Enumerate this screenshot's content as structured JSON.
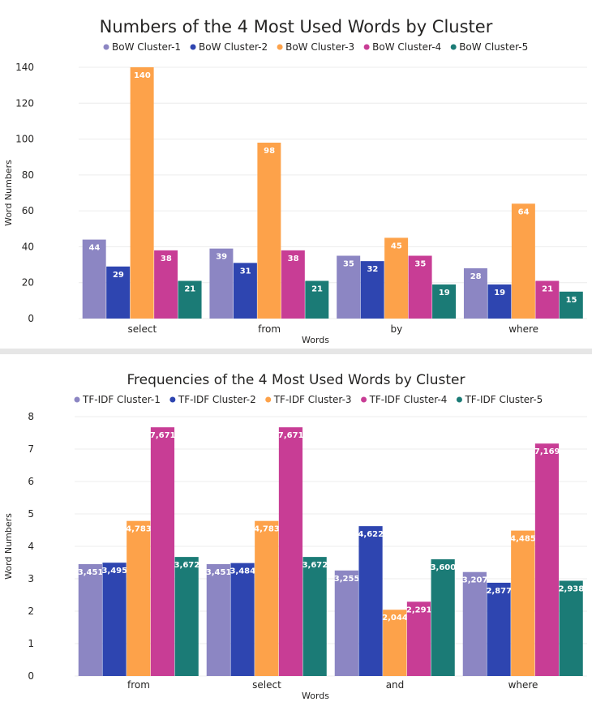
{
  "chart_data": [
    {
      "type": "bar",
      "title": "Numbers of the 4 Most Used Words by Cluster",
      "xlabel": "Words",
      "ylabel": "Word Numbers",
      "categories": [
        "select",
        "from",
        "by",
        "where"
      ],
      "ylim": [
        0,
        140
      ],
      "yticks": [
        0,
        20,
        40,
        60,
        80,
        100,
        120,
        140
      ],
      "grid": true,
      "legend_position": "top",
      "series": [
        {
          "name": "BoW Cluster-1",
          "color": "#8c86c3",
          "values": [
            44,
            39,
            35,
            28
          ],
          "labels": [
            "44",
            "39",
            "35",
            "28"
          ]
        },
        {
          "name": "BoW Cluster-2",
          "color": "#2e45b0",
          "values": [
            29,
            31,
            32,
            19
          ],
          "labels": [
            "29",
            "31",
            "32",
            "19"
          ]
        },
        {
          "name": "BoW Cluster-3",
          "color": "#fda24a",
          "values": [
            140,
            98,
            45,
            64
          ],
          "labels": [
            "140",
            "98",
            "45",
            "64"
          ]
        },
        {
          "name": "BoW Cluster-4",
          "color": "#c83d95",
          "values": [
            38,
            38,
            35,
            21
          ],
          "labels": [
            "38",
            "38",
            "35",
            "21"
          ]
        },
        {
          "name": "BoW Cluster-5",
          "color": "#1b7b76",
          "values": [
            21,
            21,
            19,
            15
          ],
          "labels": [
            "21",
            "21",
            "19",
            "15"
          ]
        }
      ]
    },
    {
      "type": "bar",
      "title": "Frequencies of the 4 Most Used Words by Cluster",
      "xlabel": "Words",
      "ylabel": "Word Numbers",
      "categories": [
        "from",
        "select",
        "and",
        "where"
      ],
      "ylim": [
        0,
        8
      ],
      "yticks": [
        0,
        1,
        2,
        3,
        4,
        5,
        6,
        7,
        8
      ],
      "grid": true,
      "legend_position": "top",
      "series": [
        {
          "name": "TF-IDF Cluster-1",
          "color": "#8c86c3",
          "values": [
            3.451,
            3.451,
            3.255,
            3.207
          ],
          "labels": [
            "3,451",
            "3,451",
            "3,255",
            "3,207"
          ]
        },
        {
          "name": "TF-IDF Cluster-2",
          "color": "#2e45b0",
          "values": [
            3.495,
            3.484,
            4.622,
            2.877
          ],
          "labels": [
            "3,495",
            "3,484",
            "4,622",
            "2,877"
          ]
        },
        {
          "name": "TF-IDF Cluster-3",
          "color": "#fda24a",
          "values": [
            4.783,
            4.783,
            2.044,
            4.485
          ],
          "labels": [
            "4,783",
            "4,783",
            "2,044",
            "4,485"
          ]
        },
        {
          "name": "TF-IDF Cluster-4",
          "color": "#c83d95",
          "values": [
            7.671,
            7.671,
            2.291,
            7.169
          ],
          "labels": [
            "7,671",
            "7,671",
            "2,291",
            "7,169"
          ]
        },
        {
          "name": "TF-IDF Cluster-5",
          "color": "#1b7b76",
          "values": [
            3.672,
            3.672,
            3.6,
            2.938
          ],
          "labels": [
            "3,672",
            "3,672",
            "3,600",
            "2,938"
          ]
        }
      ]
    }
  ]
}
